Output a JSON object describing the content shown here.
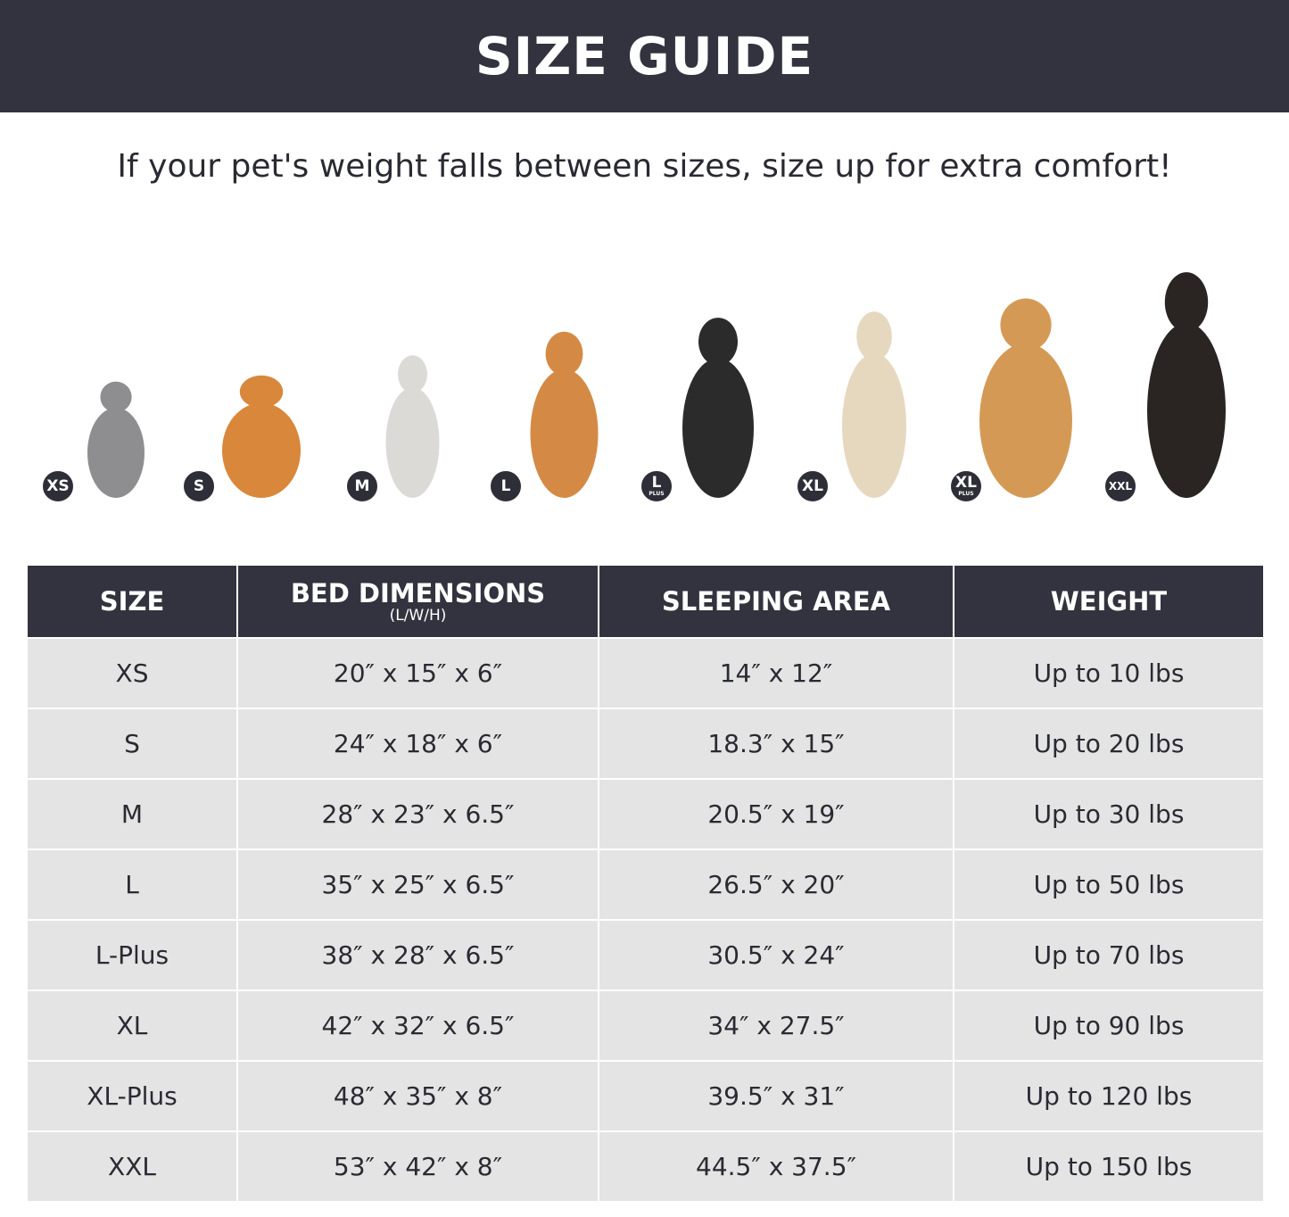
{
  "title": "SIZE GUIDE",
  "subtitle": "If your pet's weight falls between sizes, size up for extra comfort!",
  "pets": [
    {
      "badge": "XS",
      "plus": "",
      "color": "#8e8e90"
    },
    {
      "badge": "S",
      "plus": "",
      "color": "#d9873a"
    },
    {
      "badge": "M",
      "plus": "",
      "color": "#dcdad6"
    },
    {
      "badge": "L",
      "plus": "",
      "color": "#d48a45"
    },
    {
      "badge": "L",
      "plus": "PLUS",
      "color": "#2b2b2b"
    },
    {
      "badge": "XL",
      "plus": "",
      "color": "#e6d8bf"
    },
    {
      "badge": "XL",
      "plus": "PLUS",
      "color": "#d49a55"
    },
    {
      "badge": "XXL",
      "plus": "",
      "color": "#2a2422"
    }
  ],
  "table": {
    "headers": [
      {
        "label": "SIZE",
        "sub": ""
      },
      {
        "label": "BED DIMENSIONS",
        "sub": "(L/W/H)"
      },
      {
        "label": "SLEEPING AREA",
        "sub": ""
      },
      {
        "label": "WEIGHT",
        "sub": ""
      }
    ],
    "rows": [
      [
        "XS",
        "20″ x 15″ x 6″",
        "14″ x 12″",
        "Up to 10 lbs"
      ],
      [
        "S",
        "24″ x 18″ x 6″",
        "18.3″ x 15″",
        "Up to 20 lbs"
      ],
      [
        "M",
        "28″ x 23″ x 6.5″",
        "20.5″ x 19″",
        "Up to 30 lbs"
      ],
      [
        "L",
        "35″ x 25″ x 6.5″",
        "26.5″ x 20″",
        "Up to 50 lbs"
      ],
      [
        "L-Plus",
        "38″ x 28″ x 6.5″",
        "30.5″ x 24″",
        "Up to 70 lbs"
      ],
      [
        "XL",
        "42″ x 32″ x 6.5″",
        "34″ x 27.5″",
        "Up to 90 lbs"
      ],
      [
        "XL-Plus",
        "48″ x 35″ x 8″",
        "39.5″ x 31″",
        "Up to 120 lbs"
      ],
      [
        "XXL",
        "53″ x 42″ x 8″",
        "44.5″ x 37.5″",
        "Up to 150 lbs"
      ]
    ]
  }
}
